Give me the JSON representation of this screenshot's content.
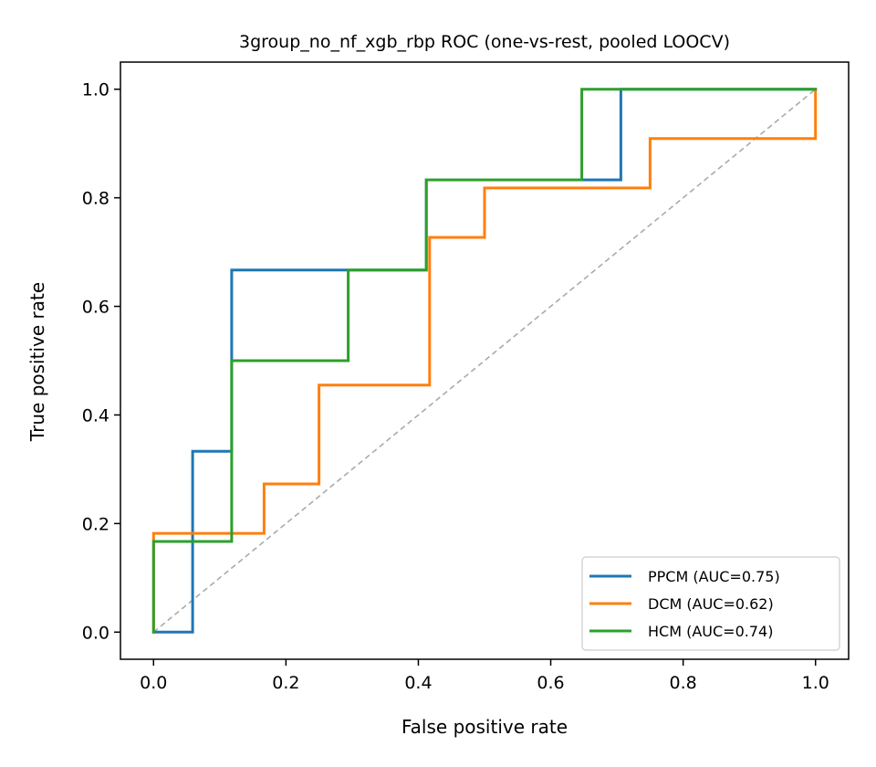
{
  "chart_data": {
    "type": "line",
    "title": "3group_no_nf_xgb_rbp ROC (one-vs-rest, pooled LOOCV)",
    "xlabel": "False positive rate",
    "ylabel": "True positive rate",
    "xlim": [
      -0.05,
      1.05
    ],
    "ylim": [
      -0.05,
      1.05
    ],
    "xticks": [
      0.0,
      0.2,
      0.4,
      0.6,
      0.8,
      1.0
    ],
    "yticks": [
      0.0,
      0.2,
      0.4,
      0.6,
      0.8,
      1.0
    ],
    "xtick_labels": [
      "0.0",
      "0.2",
      "0.4",
      "0.6",
      "0.8",
      "1.0"
    ],
    "ytick_labels": [
      "0.0",
      "0.2",
      "0.4",
      "0.6",
      "0.8",
      "1.0"
    ],
    "grid": false,
    "legend_position": "bottom-right",
    "series": [
      {
        "name": "PPCM (AUC=0.75)",
        "color": "#1f77b4",
        "points": [
          [
            0,
            0
          ],
          [
            0.059,
            0
          ],
          [
            0.059,
            0.333
          ],
          [
            0.118,
            0.333
          ],
          [
            0.118,
            0.667
          ],
          [
            0.412,
            0.667
          ],
          [
            0.412,
            0.833
          ],
          [
            0.706,
            0.833
          ],
          [
            0.706,
            1.0
          ],
          [
            1.0,
            1.0
          ]
        ]
      },
      {
        "name": "DCM (AUC=0.62)",
        "color": "#ff7f0e",
        "points": [
          [
            0,
            0
          ],
          [
            0,
            0.182
          ],
          [
            0.167,
            0.182
          ],
          [
            0.167,
            0.273
          ],
          [
            0.25,
            0.273
          ],
          [
            0.25,
            0.455
          ],
          [
            0.417,
            0.455
          ],
          [
            0.417,
            0.727
          ],
          [
            0.5,
            0.727
          ],
          [
            0.5,
            0.818
          ],
          [
            0.75,
            0.818
          ],
          [
            0.75,
            0.909
          ],
          [
            1.0,
            0.909
          ],
          [
            1.0,
            1.0
          ]
        ]
      },
      {
        "name": "HCM (AUC=0.74)",
        "color": "#2ca02c",
        "points": [
          [
            0,
            0
          ],
          [
            0,
            0.167
          ],
          [
            0.118,
            0.167
          ],
          [
            0.118,
            0.5
          ],
          [
            0.294,
            0.5
          ],
          [
            0.294,
            0.667
          ],
          [
            0.412,
            0.667
          ],
          [
            0.412,
            0.833
          ],
          [
            0.647,
            0.833
          ],
          [
            0.647,
            1.0
          ],
          [
            1.0,
            1.0
          ]
        ]
      }
    ],
    "reference_line": {
      "color": "#aaaaaa",
      "points": [
        [
          0,
          0
        ],
        [
          1,
          1
        ]
      ]
    }
  }
}
